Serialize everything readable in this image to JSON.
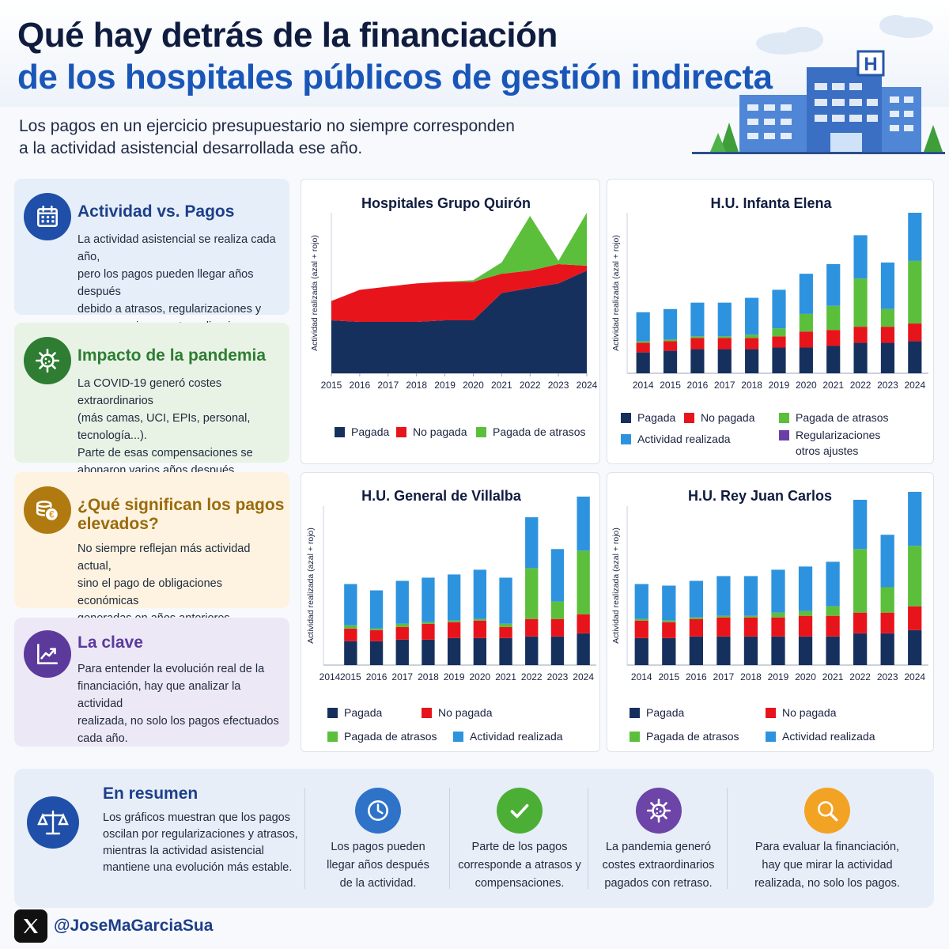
{
  "header": {
    "title_line1": "Qué hay detrás de la financiación",
    "title_line2": "de los hospitales públicos de gestión indirecta",
    "subtitle_line1": "Los pagos en un ejercicio presupuestario no siempre corresponden",
    "subtitle_line2": "a la actividad asistencial desarrollada ese año.",
    "hospital_sign": "H"
  },
  "side_cards": [
    {
      "title": "Actividad vs. Pagos",
      "icon": "calendar-icon",
      "color": "#1f4fa8",
      "bg": "#e6eef9",
      "lines": [
        "La actividad asistencial se realiza cada año,",
        "pero los pagos pueden llegar años después",
        "debido a atrasos, regularizaciones y",
        "compensaciones extraordinarias."
      ]
    },
    {
      "title": "Impacto de la pandemia",
      "icon": "virus-icon",
      "color": "#2e7d32",
      "bg": "#e8f3e6",
      "lines": [
        "La COVID-19 generó costes extraordinarios",
        "(más camas, UCI, EPIs, personal, tecnología...).",
        "Parte de esas compensaciones se",
        "abonaron varios años después."
      ]
    },
    {
      "title": "¿Qué significan los pagos",
      "title2": "elevados?",
      "icon": "coins-euro-icon",
      "color": "#b07a10",
      "bg": "#fdf3e0",
      "lines": [
        "No siempre reflejan más actividad actual,",
        "sino el pago de obligaciones económicas",
        "generadas en años anteriores."
      ]
    },
    {
      "title": "La clave",
      "icon": "trend-chart-icon",
      "color": "#5b3a9c",
      "bg": "#ece8f6",
      "lines": [
        "Para entender la evolución real de la",
        "financiación, hay que analizar la actividad",
        "realizada, no solo los pagos efectuados",
        "cada año."
      ]
    }
  ],
  "legend_labels": {
    "pagada": "Pagada",
    "no_pagada": "No pagada",
    "atrasos": "Pagada de atrasos",
    "actividad": "Actividad realizada",
    "regularizaciones_1": "Regularizaciones",
    "regularizaciones_2": "otros ajustes"
  },
  "colors": {
    "pagada": "#16305e",
    "no_pagada": "#e8141c",
    "atrasos": "#5cbf3c",
    "actividad": "#2e93de",
    "regularizaciones": "#6a3fa8"
  },
  "chart_data": [
    {
      "type": "area",
      "title": "Hospitales Grupo Quirón",
      "ylabel": "Actividad realizada (azal + rojo)",
      "x": [
        "2015",
        "2016",
        "2017",
        "2018",
        "2019",
        "2020",
        "2021",
        "2022",
        "2023",
        "2024"
      ],
      "ylim": [
        0,
        100
      ],
      "series": [
        {
          "name": "Pagada",
          "values": [
            33,
            32,
            32,
            32,
            33,
            33,
            50,
            53,
            56,
            64
          ]
        },
        {
          "name": "No pagada",
          "values": [
            12,
            20,
            22,
            24,
            24,
            24,
            12,
            11,
            12,
            3
          ]
        },
        {
          "name": "Pagada de atrasos",
          "values": [
            0,
            0,
            0,
            0,
            0,
            1,
            7,
            34,
            2,
            33
          ]
        }
      ]
    },
    {
      "type": "bar",
      "title": "H.U. Infanta Elena",
      "ylabel": "Actividad realizada (azal + rojo)",
      "categories": [
        "2014",
        "2015",
        "2016",
        "2017",
        "2018",
        "2019",
        "2020",
        "2021",
        "2022",
        "2023",
        "2024"
      ],
      "ylim": [
        0,
        100
      ],
      "series": [
        {
          "name": "Pagada",
          "values": [
            13,
            14,
            15,
            15,
            15,
            16,
            16,
            17,
            19,
            19,
            20
          ]
        },
        {
          "name": "No pagada",
          "values": [
            6,
            6,
            7,
            7,
            7,
            7,
            10,
            10,
            10,
            10,
            11
          ]
        },
        {
          "name": "Pagada de atrasos",
          "values": [
            1,
            1,
            1,
            1,
            2,
            5,
            11,
            15,
            30,
            11,
            39
          ]
        },
        {
          "name": "Actividad realizada",
          "values": [
            18,
            19,
            21,
            21,
            23,
            24,
            25,
            26,
            27,
            29,
            30
          ]
        }
      ]
    },
    {
      "type": "bar",
      "title": "H.U. General de Villalba",
      "ylabel": "Actividad realizada (azal + rojo)",
      "categories": [
        "2015",
        "2016",
        "2017",
        "2018",
        "2019",
        "2020",
        "2021",
        "2022",
        "2023",
        "2024"
      ],
      "ylim": [
        0,
        100
      ],
      "series": [
        {
          "name": "Pagada",
          "values": [
            15,
            15,
            16,
            16,
            17,
            17,
            17,
            18,
            18,
            20
          ]
        },
        {
          "name": "No pagada",
          "values": [
            8,
            7,
            8,
            10,
            10,
            11,
            7,
            11,
            11,
            12
          ]
        },
        {
          "name": "Pagada de atrasos",
          "values": [
            2,
            1,
            2,
            1,
            1,
            1,
            2,
            32,
            11,
            40
          ]
        },
        {
          "name": "Actividad realizada",
          "values": [
            26,
            24,
            27,
            28,
            29,
            31,
            29,
            32,
            33,
            34
          ]
        }
      ]
    },
    {
      "type": "bar",
      "title": "H.U. Rey Juan Carlos",
      "ylabel": "Actividad realizada (azal + rojo)",
      "categories": [
        "2014",
        "2015",
        "2016",
        "2017",
        "2018",
        "2019",
        "2020",
        "2021",
        "2022",
        "2023",
        "2024"
      ],
      "ylim": [
        0,
        100
      ],
      "series": [
        {
          "name": "Pagada",
          "values": [
            17,
            17,
            18,
            18,
            18,
            18,
            18,
            18,
            20,
            20,
            22
          ]
        },
        {
          "name": "No pagada",
          "values": [
            11,
            10,
            11,
            12,
            12,
            12,
            13,
            13,
            13,
            13,
            15
          ]
        },
        {
          "name": "Pagada de atrasos",
          "values": [
            1,
            1,
            1,
            1,
            1,
            3,
            3,
            6,
            40,
            16,
            38
          ]
        },
        {
          "name": "Actividad realizada",
          "values": [
            22,
            22,
            23,
            25,
            25,
            27,
            28,
            28,
            31,
            33,
            34
          ]
        }
      ]
    }
  ],
  "summary": {
    "title": "En resumen",
    "lines": [
      "Los gráficos muestran que los pagos",
      "oscilan por regularizaciones y atrasos,",
      "mientras la actividad asistencial",
      "mantiene una evolución más estable."
    ],
    "items": [
      {
        "icon": "clock-icon",
        "color": "#2f73c9",
        "lines": [
          "Los pagos pueden",
          "llegar años después",
          "de la actividad."
        ]
      },
      {
        "icon": "check-icon",
        "color": "#4caf35",
        "lines": [
          "Parte de los pagos",
          "corresponde a atrasos y",
          "compensaciones."
        ]
      },
      {
        "icon": "virus-icon",
        "color": "#6d45a8",
        "lines": [
          "La pandemia generó",
          "costes extraordinarios",
          "pagados con retraso."
        ]
      },
      {
        "icon": "magnifier-icon",
        "color": "#f2a324",
        "lines": [
          "Para evaluar la financiación,",
          "hay que mirar la actividad",
          "realizada, no solo los pagos."
        ]
      }
    ]
  },
  "footer": {
    "handle": "@JoseMaGarciaSua"
  }
}
